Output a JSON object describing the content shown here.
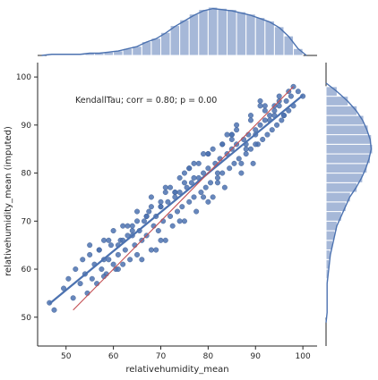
{
  "chart_data": {
    "type": "scatter",
    "title": "",
    "xlabel": "relativehumidity_mean",
    "ylabel": "relativehumidity_mean (imputed)",
    "xlim": [
      44,
      103
    ],
    "ylim": [
      44,
      103
    ],
    "xticks": [
      "50",
      "60",
      "70",
      "80",
      "90",
      "100"
    ],
    "yticks": [
      "50",
      "60",
      "70",
      "80",
      "90",
      "100"
    ],
    "annotation": "KendallTau; corr = 0.80; p = 0.00",
    "grid": false,
    "colors": {
      "points": "#4c72b0",
      "fit_line": "#4c72b0",
      "identity_line": "#c44e52",
      "hist_fill": "#a6b8d8",
      "hist_edge": "#ffffff"
    },
    "regression_line": {
      "x": [
        46.5,
        100
      ],
      "y": [
        52.8,
        96.2
      ]
    },
    "identity_line": {
      "x": [
        51.5,
        98
      ],
      "y": [
        51.5,
        98
      ]
    },
    "points": {
      "x": [
        46.5,
        47.5,
        49.5,
        50.5,
        51.5,
        52,
        53,
        53.5,
        54,
        54.5,
        55,
        55.5,
        56,
        56.5,
        57,
        57.5,
        58,
        58.5,
        59,
        59.5,
        60,
        60.5,
        61,
        61.5,
        62,
        62.5,
        63,
        63.5,
        64,
        64.5,
        65,
        65.5,
        66,
        66.5,
        67,
        67.5,
        68,
        68.5,
        69,
        69.5,
        70,
        70.5,
        71,
        71.5,
        72,
        72.5,
        73,
        73.5,
        74,
        74.5,
        75,
        75.5,
        76,
        76.5,
        77,
        77.5,
        78,
        78.5,
        79,
        79.5,
        80,
        80.5,
        81,
        81.5,
        82,
        82.5,
        83,
        83.5,
        84,
        84.5,
        85,
        85.5,
        86,
        86.5,
        87,
        87.5,
        88,
        88.5,
        89,
        89.5,
        90,
        90.5,
        91,
        91.5,
        92,
        92.5,
        93,
        93.5,
        94,
        94.5,
        95,
        95.5,
        96,
        96.5,
        97,
        97.5,
        98,
        99,
        100,
        58,
        62,
        66,
        70,
        74,
        78,
        82,
        86,
        90,
        94,
        64,
        68,
        72,
        76,
        80,
        84,
        88,
        92,
        96,
        55,
        60,
        65,
        70,
        75,
        80,
        85,
        90,
        61,
        67,
        73,
        79,
        85,
        91,
        63,
        69,
        75,
        81,
        87,
        93,
        71,
        77,
        83,
        89,
        95,
        57,
        59,
        62,
        65,
        68,
        71,
        74,
        77,
        80,
        83,
        86,
        89,
        92,
        95,
        98,
        58,
        61,
        64,
        67,
        70,
        73,
        76,
        79,
        82,
        85,
        88,
        91,
        94,
        97
      ],
      "y": [
        53,
        51.5,
        56,
        58,
        54,
        60,
        57,
        62,
        59,
        55,
        63,
        58,
        61,
        57,
        64,
        60,
        66,
        59,
        62,
        65,
        68,
        60,
        63,
        66,
        61,
        64,
        67,
        62,
        69,
        65,
        63,
        68,
        66,
        70,
        67,
        72,
        64,
        69,
        71,
        68,
        73,
        70,
        66,
        74,
        71,
        69,
        75,
        72,
        76,
        73,
        70,
        77,
        74,
        78,
        75,
        72,
        79,
        76,
        80,
        77,
        81,
        78,
        75,
        82,
        79,
        83,
        80,
        77,
        84,
        81,
        85,
        82,
        86,
        83,
        80,
        87,
        84,
        88,
        85,
        82,
        89,
        86,
        90,
        87,
        91,
        88,
        92,
        89,
        93,
        90,
        94,
        91,
        92,
        95,
        93,
        96,
        94,
        97,
        96,
        58.5,
        66,
        62,
        74,
        70,
        82,
        78,
        90,
        86,
        94,
        68,
        73,
        77,
        81,
        84,
        88,
        85,
        93,
        92,
        65,
        61,
        70,
        66,
        78,
        74,
        87,
        88,
        60,
        71,
        76,
        75,
        88,
        94,
        69,
        64,
        80,
        85,
        82,
        91,
        76,
        79,
        86,
        92,
        95,
        64,
        66,
        69,
        72,
        75,
        77,
        79,
        82,
        84,
        86,
        89,
        91,
        94,
        96,
        98,
        62,
        65,
        67,
        71,
        73,
        76,
        81,
        84,
        80,
        88,
        86,
        95,
        92,
        97
      ]
    },
    "top_histogram": {
      "bin_edges": [
        46,
        48,
        50,
        52,
        54,
        56,
        58,
        60,
        62,
        64,
        66,
        68,
        70,
        72,
        74,
        76,
        78,
        80,
        82,
        84,
        86,
        88,
        90,
        92,
        94,
        96,
        98,
        100
      ],
      "counts": [
        1,
        1,
        1,
        1,
        2,
        2,
        3,
        4,
        6,
        8,
        12,
        15,
        20,
        26,
        31,
        36,
        40,
        42,
        41,
        40,
        38,
        36,
        33,
        30,
        25,
        17,
        6
      ]
    },
    "right_histogram": {
      "bin_edges": [
        50,
        52,
        54,
        56,
        58,
        60,
        62,
        64,
        66,
        68,
        70,
        72,
        74,
        76,
        78,
        80,
        82,
        84,
        86,
        88,
        90,
        92,
        94,
        96,
        98
      ],
      "counts": [
        1,
        1,
        1,
        1,
        2,
        3,
        4,
        6,
        8,
        10,
        14,
        18,
        22,
        28,
        33,
        37,
        40,
        42,
        41,
        38,
        34,
        28,
        20,
        10
      ]
    }
  }
}
